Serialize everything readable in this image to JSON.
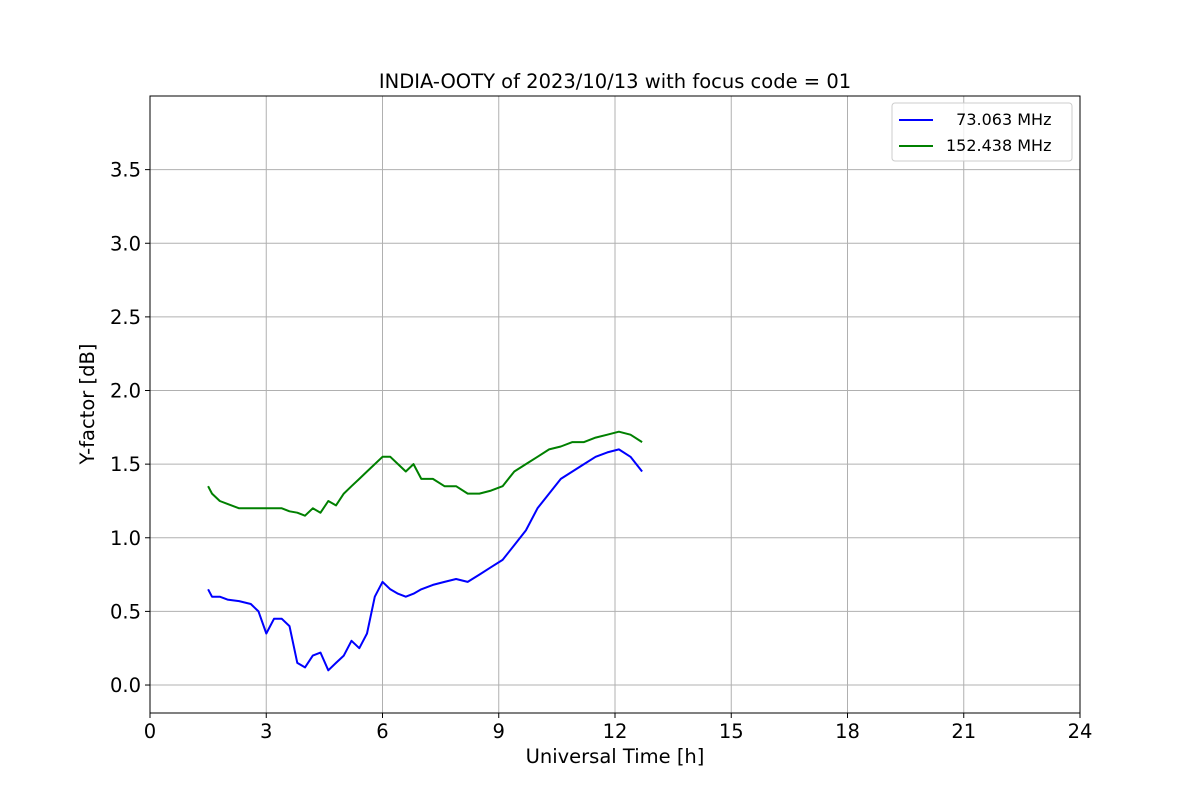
{
  "chart_data": {
    "type": "line",
    "title": "INDIA-OOTY of 2023/10/13 with focus code = 01",
    "xlabel": "Universal Time [h]",
    "ylabel": "Y-factor [dB]",
    "xlim": [
      0,
      24
    ],
    "ylim": [
      -0.19,
      4.0
    ],
    "xticks": [
      0,
      3,
      6,
      9,
      12,
      15,
      18,
      21,
      24
    ],
    "xtick_labels": [
      "0",
      "3",
      "6",
      "9",
      "12",
      "15",
      "18",
      "21",
      "24"
    ],
    "yticks": [
      0.0,
      0.5,
      1.0,
      1.5,
      2.0,
      2.5,
      3.0,
      3.5
    ],
    "ytick_labels": [
      "0.0",
      "0.5",
      "1.0",
      "1.5",
      "2.0",
      "2.5",
      "3.0",
      "3.5"
    ],
    "grid": true,
    "legend_position": "top-right",
    "series": [
      {
        "name": "  73.063 MHz",
        "color": "#0000ff",
        "x": [
          1.5,
          1.6,
          1.8,
          2.0,
          2.3,
          2.6,
          2.8,
          3.0,
          3.2,
          3.4,
          3.6,
          3.8,
          4.0,
          4.2,
          4.4,
          4.6,
          4.8,
          5.0,
          5.2,
          5.4,
          5.6,
          5.8,
          6.0,
          6.2,
          6.4,
          6.6,
          6.8,
          7.0,
          7.3,
          7.6,
          7.9,
          8.2,
          8.5,
          8.8,
          9.1,
          9.4,
          9.7,
          10.0,
          10.3,
          10.6,
          10.9,
          11.2,
          11.5,
          11.8,
          12.1,
          12.4,
          12.7
        ],
        "y": [
          0.65,
          0.6,
          0.6,
          0.58,
          0.57,
          0.55,
          0.5,
          0.35,
          0.45,
          0.45,
          0.4,
          0.15,
          0.12,
          0.2,
          0.22,
          0.1,
          0.15,
          0.2,
          0.3,
          0.25,
          0.35,
          0.6,
          0.7,
          0.65,
          0.62,
          0.6,
          0.62,
          0.65,
          0.68,
          0.7,
          0.72,
          0.7,
          0.75,
          0.8,
          0.85,
          0.95,
          1.05,
          1.2,
          1.3,
          1.4,
          1.45,
          1.5,
          1.55,
          1.58,
          1.6,
          1.55,
          1.45
        ]
      },
      {
        "name": "152.438 MHz",
        "color": "#008000",
        "x": [
          1.5,
          1.6,
          1.8,
          2.0,
          2.3,
          2.6,
          2.8,
          3.0,
          3.2,
          3.4,
          3.6,
          3.8,
          4.0,
          4.2,
          4.4,
          4.6,
          4.8,
          5.0,
          5.2,
          5.4,
          5.6,
          5.8,
          6.0,
          6.2,
          6.4,
          6.6,
          6.8,
          7.0,
          7.3,
          7.6,
          7.9,
          8.2,
          8.5,
          8.8,
          9.1,
          9.4,
          9.7,
          10.0,
          10.3,
          10.6,
          10.9,
          11.2,
          11.5,
          11.8,
          12.1,
          12.4,
          12.7
        ],
        "y": [
          1.35,
          1.3,
          1.25,
          1.23,
          1.2,
          1.2,
          1.2,
          1.2,
          1.2,
          1.2,
          1.18,
          1.17,
          1.15,
          1.2,
          1.17,
          1.25,
          1.22,
          1.3,
          1.35,
          1.4,
          1.45,
          1.5,
          1.55,
          1.55,
          1.5,
          1.45,
          1.5,
          1.4,
          1.4,
          1.35,
          1.35,
          1.3,
          1.3,
          1.32,
          1.35,
          1.45,
          1.5,
          1.55,
          1.6,
          1.62,
          1.65,
          1.65,
          1.68,
          1.7,
          1.72,
          1.7,
          1.65
        ]
      }
    ]
  }
}
